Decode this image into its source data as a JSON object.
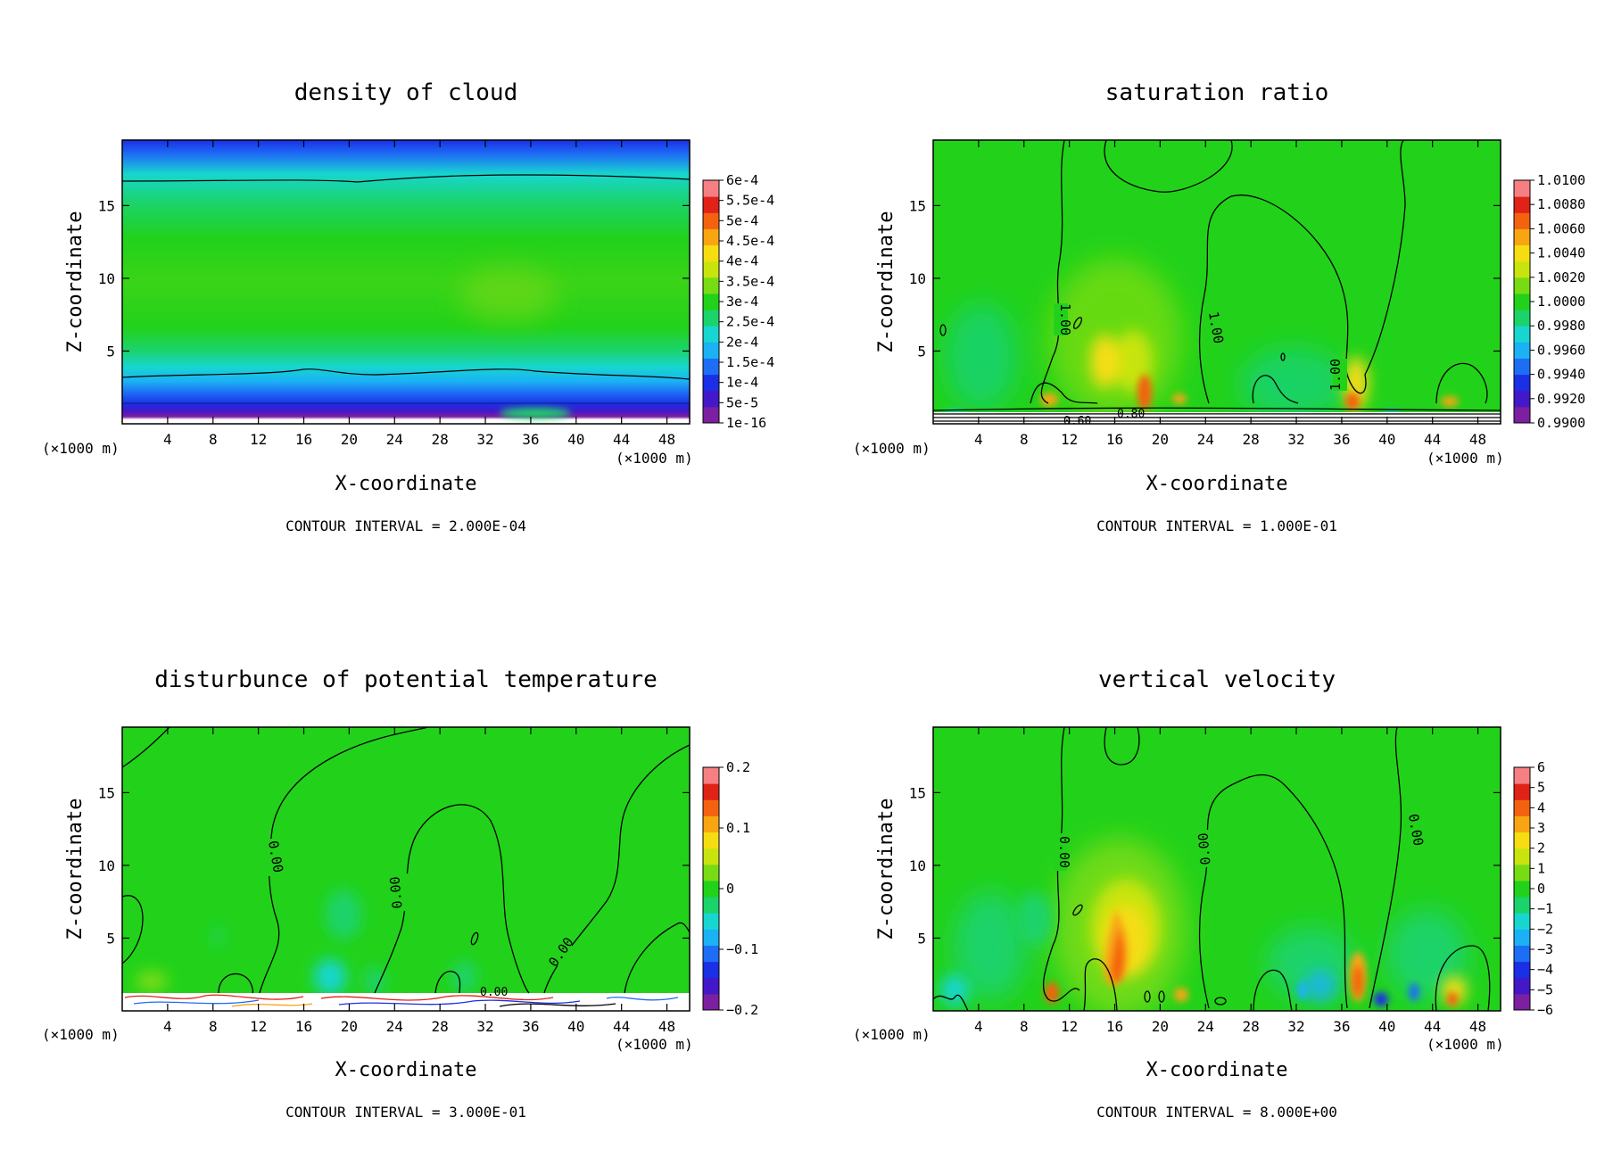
{
  "figure": {
    "layout": "2x2 panels",
    "background": "#ffffff"
  },
  "chart_data": [
    {
      "type": "heatmap",
      "title": "density of cloud",
      "xlabel": "X-coordinate",
      "ylabel": "Z-coordinate",
      "x_unit_left": "(×1000 m)",
      "x_unit_right": "(×1000 m)",
      "xlim": [
        0,
        50
      ],
      "ylim": [
        0,
        19.5
      ],
      "xticks": [
        4,
        8,
        12,
        16,
        20,
        24,
        28,
        32,
        36,
        40,
        44,
        48
      ],
      "yticks": [
        5,
        10,
        15
      ],
      "colorbar": {
        "labels": [
          "6e-4",
          "5.5e-4",
          "5e-4",
          "4.5e-4",
          "4e-4",
          "3.5e-4",
          "3e-4",
          "2.5e-4",
          "2e-4",
          "1.5e-4",
          "1e-4",
          "5e-5",
          "1e-16"
        ],
        "colors": [
          "#7c1fa0",
          "#4318c8",
          "#1a2fe6",
          "#1e6ef5",
          "#1ab2f5",
          "#17d6cf",
          "#1bd36b",
          "#22d21a",
          "#78dc14",
          "#c8e40e",
          "#f6dd12",
          "#f7a612",
          "#f5620f",
          "#e02217",
          "#f57f82"
        ]
      },
      "contour_levels": [
        2,
        3.4,
        17.1
      ],
      "contour_labels": [],
      "annotation": "CONTOUR INTERVAL = 2.000E-04"
    },
    {
      "type": "heatmap",
      "title": "saturation ratio",
      "xlabel": "X-coordinate",
      "ylabel": "Z-coordinate",
      "x_unit_left": "(×1000 m)",
      "x_unit_right": "(×1000 m)",
      "xlim": [
        0,
        50
      ],
      "ylim": [
        0,
        19.5
      ],
      "xticks": [
        4,
        8,
        12,
        16,
        20,
        24,
        28,
        32,
        36,
        40,
        44,
        48
      ],
      "yticks": [
        5,
        10,
        15
      ],
      "colorbar": {
        "labels": [
          "1.0100",
          "1.0080",
          "1.0060",
          "1.0040",
          "1.0020",
          "1.0000",
          "0.9980",
          "0.9960",
          "0.9940",
          "0.9920",
          "0.9900"
        ],
        "colors": [
          "#7c1fa0",
          "#4318c8",
          "#1a2fe6",
          "#1e6ef5",
          "#1ab2f5",
          "#17d6cf",
          "#1bd36b",
          "#22d21a",
          "#78dc14",
          "#c8e40e",
          "#f6dd12",
          "#f7a612",
          "#f5620f",
          "#e02217",
          "#f57f82"
        ]
      },
      "contour_labels": [
        "1.00",
        "1.00",
        "1.00",
        "0.60",
        "0.80"
      ],
      "annotation": "CONTOUR INTERVAL = 1.000E-01"
    },
    {
      "type": "heatmap",
      "title": "disturbunce of potential temperature",
      "xlabel": "X-coordinate",
      "ylabel": "Z-coordinate",
      "x_unit_left": "(×1000 m)",
      "x_unit_right": "(×1000 m)",
      "xlim": [
        0,
        50
      ],
      "ylim": [
        0,
        19.5
      ],
      "xticks": [
        4,
        8,
        12,
        16,
        20,
        24,
        28,
        32,
        36,
        40,
        44,
        48
      ],
      "yticks": [
        5,
        10,
        15
      ],
      "colorbar": {
        "labels": [
          "0.2",
          "0.1",
          "0",
          "−0.1",
          "−0.2"
        ],
        "colors": [
          "#7c1fa0",
          "#4318c8",
          "#1a2fe6",
          "#1e6ef5",
          "#1ab2f5",
          "#17d6cf",
          "#1bd36b",
          "#22d21a",
          "#78dc14",
          "#c8e40e",
          "#f6dd12",
          "#f7a612",
          "#f5620f",
          "#e02217",
          "#f57f82"
        ]
      },
      "contour_labels": [
        "0.00",
        "0.00",
        "0.00",
        "0.00"
      ],
      "annotation": "CONTOUR INTERVAL = 3.000E-01"
    },
    {
      "type": "heatmap",
      "title": "vertical velocity",
      "xlabel": "X-coordinate",
      "ylabel": "Z-coordinate",
      "x_unit_left": "(×1000 m)",
      "x_unit_right": "(×1000 m)",
      "xlim": [
        0,
        50
      ],
      "ylim": [
        0,
        19.5
      ],
      "xticks": [
        4,
        8,
        12,
        16,
        20,
        24,
        28,
        32,
        36,
        40,
        44,
        48
      ],
      "yticks": [
        5,
        10,
        15
      ],
      "colorbar": {
        "labels": [
          "6",
          "5",
          "4",
          "3",
          "2",
          "1",
          "0",
          "−1",
          "−2",
          "−3",
          "−4",
          "−5",
          "−6"
        ],
        "colors": [
          "#7c1fa0",
          "#4318c8",
          "#1a2fe6",
          "#1e6ef5",
          "#1ab2f5",
          "#17d6cf",
          "#1bd36b",
          "#22d21a",
          "#78dc14",
          "#c8e40e",
          "#f6dd12",
          "#f7a612",
          "#f5620f",
          "#e02217",
          "#f57f82"
        ]
      },
      "contour_labels": [
        "0.00",
        "0.00",
        "0.00"
      ],
      "annotation": "CONTOUR INTERVAL = 8.000E+00"
    }
  ]
}
